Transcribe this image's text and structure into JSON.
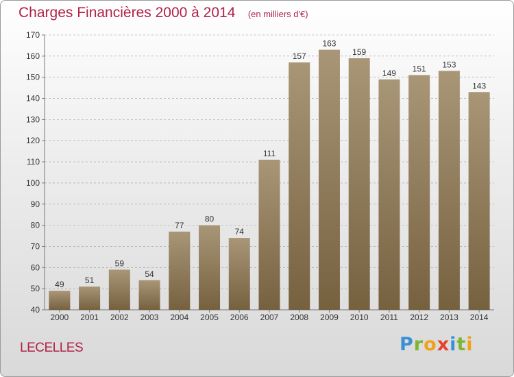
{
  "header": {
    "title": "Charges Financières 2000 à 2014",
    "subtitle": "(en milliers d'€)"
  },
  "location": "LECELLES",
  "brand": {
    "text": "Proxiti",
    "letters": [
      {
        "ch": "P",
        "color": "#3a8fd6"
      },
      {
        "ch": "r",
        "color": "#7cb52f"
      },
      {
        "ch": "o",
        "color": "#f0a21a"
      },
      {
        "ch": "x",
        "color": "#e5432a"
      },
      {
        "ch": "i",
        "color": "#3a8fd6"
      },
      {
        "ch": "t",
        "color": "#7cb52f"
      },
      {
        "ch": "i",
        "color": "#f0a21a"
      }
    ]
  },
  "colors": {
    "title": "#b2214a",
    "bar_top": "#a89677",
    "bar_bottom": "#76613f",
    "grid": "#9a9a9a"
  },
  "chart_data": {
    "type": "bar",
    "title": "Charges Financières 2000 à 2014",
    "subtitle": "(en milliers d'€)",
    "xlabel": "",
    "ylabel": "",
    "categories": [
      "2000",
      "2001",
      "2002",
      "2003",
      "2004",
      "2005",
      "2006",
      "2007",
      "2008",
      "2009",
      "2010",
      "2011",
      "2012",
      "2013",
      "2014"
    ],
    "values": [
      49,
      51,
      59,
      54,
      77,
      80,
      74,
      111,
      157,
      163,
      159,
      149,
      151,
      153,
      143
    ],
    "ylim": [
      40,
      170
    ],
    "yticks": [
      40,
      50,
      60,
      70,
      80,
      90,
      100,
      110,
      120,
      130,
      140,
      150,
      160,
      170
    ],
    "grid": "horizontal dashed",
    "legend": "none",
    "data_labels": true
  }
}
